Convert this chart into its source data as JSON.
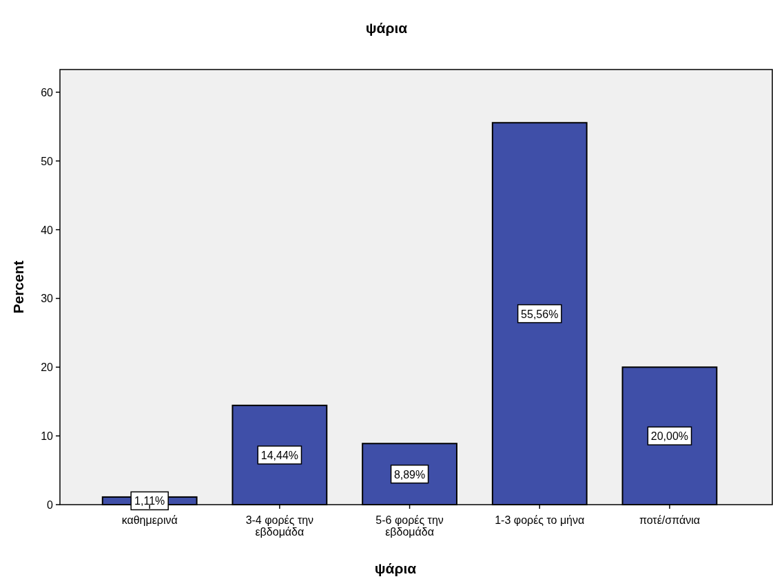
{
  "chart_data": {
    "type": "bar",
    "title": "ψάρια",
    "xlabel": "ψάρια",
    "ylabel": "Percent",
    "categories": [
      "καθημερινά",
      "3-4 φορές την εβδομάδα",
      "5-6 φορές την εβδομάδα",
      "1-3 φορές το μήνα",
      "ποτέ/σπάνια"
    ],
    "values": [
      1.11,
      14.44,
      8.89,
      55.56,
      20.0
    ],
    "value_labels": [
      "1,11%",
      "14,44%",
      "8,89%",
      "55,56%",
      "20,00%"
    ],
    "color": "#3f4fa8",
    "ylim": [
      0,
      63.3
    ],
    "yticks": [
      0,
      10,
      20,
      30,
      40,
      50,
      60
    ],
    "grid": false
  }
}
